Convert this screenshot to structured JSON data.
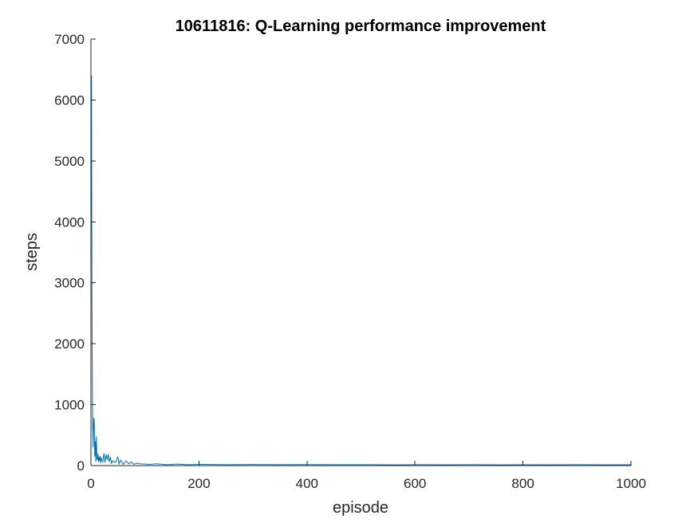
{
  "chart_data": {
    "type": "line",
    "title": "10611816: Q-Learning performance improvement",
    "xlabel": "episode",
    "ylabel": "steps",
    "xlim": [
      0,
      1000
    ],
    "ylim": [
      0,
      7000
    ],
    "xticks": [
      0,
      200,
      400,
      600,
      800,
      1000
    ],
    "yticks": [
      0,
      1000,
      2000,
      3000,
      4000,
      5000,
      6000,
      7000
    ],
    "xtick_labels": [
      "0",
      "200",
      "400",
      "600",
      "800",
      "1000"
    ],
    "ytick_labels": [
      "0",
      "1000",
      "2000",
      "3000",
      "4000",
      "5000",
      "6000",
      "7000"
    ],
    "grid": false,
    "box": false,
    "series": [
      {
        "color": "#0072BD",
        "x": [
          1,
          2,
          3,
          4,
          5,
          6,
          7,
          8,
          9,
          10,
          11,
          12,
          13,
          14,
          15,
          16,
          17,
          18,
          19,
          20,
          22,
          24,
          26,
          28,
          30,
          32,
          34,
          36,
          38,
          40,
          45,
          50,
          52,
          55,
          60,
          65,
          70,
          75,
          80,
          85,
          90,
          100,
          110,
          120,
          140,
          160,
          180,
          200,
          250,
          300,
          350,
          400,
          450,
          500,
          550,
          600,
          650,
          700,
          750,
          800,
          850,
          900,
          950,
          1000
        ],
        "y": [
          6400,
          2300,
          760,
          300,
          780,
          760,
          150,
          400,
          60,
          480,
          120,
          90,
          200,
          60,
          140,
          80,
          160,
          40,
          130,
          90,
          60,
          200,
          50,
          180,
          100,
          190,
          60,
          140,
          30,
          80,
          50,
          140,
          30,
          90,
          20,
          80,
          30,
          60,
          20,
          40,
          30,
          25,
          20,
          30,
          15,
          25,
          15,
          20,
          15,
          18,
          14,
          16,
          14,
          15,
          13,
          14,
          13,
          14,
          13,
          14,
          13,
          14,
          13,
          14
        ]
      }
    ]
  }
}
